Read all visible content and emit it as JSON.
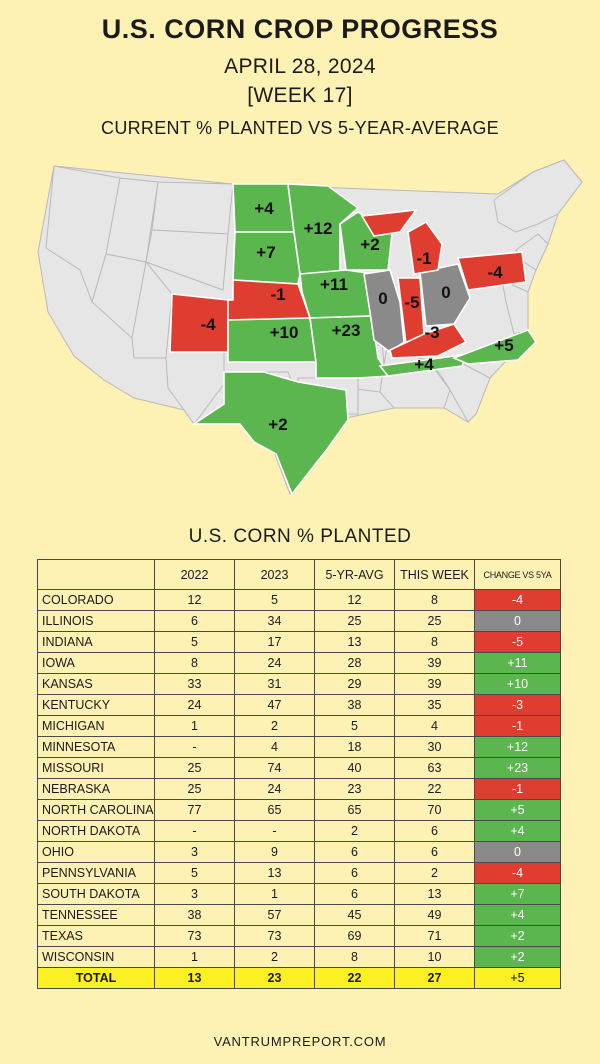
{
  "header": {
    "title": "U.S. CORN CROP PROGRESS",
    "date": "APRIL 28, 2024",
    "week": "[WEEK 17]",
    "comparison": "CURRENT % PLANTED VS 5-YEAR-AVERAGE"
  },
  "colors": {
    "background": "#fdf1b3",
    "positive": "#5cb64f",
    "negative": "#e03d31",
    "zero": "#8a8a8a",
    "total_row": "#fbf023",
    "map_base": "#e6e6e6"
  },
  "map": {
    "labels": [
      {
        "state": "North Dakota",
        "text": "+4"
      },
      {
        "state": "Minnesota",
        "text": "+12"
      },
      {
        "state": "South Dakota",
        "text": "+7"
      },
      {
        "state": "Wisconsin",
        "text": "+2"
      },
      {
        "state": "Iowa",
        "text": "+11"
      },
      {
        "state": "Nebraska",
        "text": "-1"
      },
      {
        "state": "Colorado",
        "text": "-4"
      },
      {
        "state": "Kansas",
        "text": "+10"
      },
      {
        "state": "Missouri",
        "text": "+23"
      },
      {
        "state": "Illinois",
        "text": "0"
      },
      {
        "state": "Indiana",
        "text": "-5"
      },
      {
        "state": "Ohio",
        "text": "0"
      },
      {
        "state": "Michigan",
        "text": "-1"
      },
      {
        "state": "Pennsylvania",
        "text": "-4"
      },
      {
        "state": "Kentucky",
        "text": "-3"
      },
      {
        "state": "Tennessee",
        "text": "+4"
      },
      {
        "state": "North Carolina",
        "text": "+5"
      },
      {
        "state": "Texas",
        "text": "+2"
      }
    ]
  },
  "chart_data": {
    "type": "table",
    "title": "U.S. CORN % PLANTED",
    "columns": [
      "",
      "2022",
      "2023",
      "5-YR-AVG",
      "THIS WEEK",
      "CHANGE VS 5YA"
    ],
    "rows": [
      {
        "state": "COLORADO",
        "y2022": "12",
        "y2023": "5",
        "avg": "12",
        "week": "8",
        "change": "-4"
      },
      {
        "state": "ILLINOIS",
        "y2022": "6",
        "y2023": "34",
        "avg": "25",
        "week": "25",
        "change": "0"
      },
      {
        "state": "INDIANA",
        "y2022": "5",
        "y2023": "17",
        "avg": "13",
        "week": "8",
        "change": "-5"
      },
      {
        "state": "IOWA",
        "y2022": "8",
        "y2023": "24",
        "avg": "28",
        "week": "39",
        "change": "+11"
      },
      {
        "state": "KANSAS",
        "y2022": "33",
        "y2023": "31",
        "avg": "29",
        "week": "39",
        "change": "+10"
      },
      {
        "state": "KENTUCKY",
        "y2022": "24",
        "y2023": "47",
        "avg": "38",
        "week": "35",
        "change": "-3"
      },
      {
        "state": "MICHIGAN",
        "y2022": "1",
        "y2023": "2",
        "avg": "5",
        "week": "4",
        "change": "-1"
      },
      {
        "state": "MINNESOTA",
        "y2022": "-",
        "y2023": "4",
        "avg": "18",
        "week": "30",
        "change": "+12"
      },
      {
        "state": "MISSOURI",
        "y2022": "25",
        "y2023": "74",
        "avg": "40",
        "week": "63",
        "change": "+23"
      },
      {
        "state": "NEBRASKA",
        "y2022": "25",
        "y2023": "24",
        "avg": "23",
        "week": "22",
        "change": "-1"
      },
      {
        "state": "NORTH CAROLINA",
        "y2022": "77",
        "y2023": "65",
        "avg": "65",
        "week": "70",
        "change": "+5"
      },
      {
        "state": "NORTH DAKOTA",
        "y2022": "-",
        "y2023": "-",
        "avg": "2",
        "week": "6",
        "change": "+4"
      },
      {
        "state": "OHIO",
        "y2022": "3",
        "y2023": "9",
        "avg": "6",
        "week": "6",
        "change": "0"
      },
      {
        "state": "PENNSYLVANIA",
        "y2022": "5",
        "y2023": "13",
        "avg": "6",
        "week": "2",
        "change": "-4"
      },
      {
        "state": "SOUTH DAKOTA",
        "y2022": "3",
        "y2023": "1",
        "avg": "6",
        "week": "13",
        "change": "+7"
      },
      {
        "state": "TENNESSEE",
        "y2022": "38",
        "y2023": "57",
        "avg": "45",
        "week": "49",
        "change": "+4"
      },
      {
        "state": "TEXAS",
        "y2022": "73",
        "y2023": "73",
        "avg": "69",
        "week": "71",
        "change": "+2"
      },
      {
        "state": "WISCONSIN",
        "y2022": "1",
        "y2023": "2",
        "avg": "8",
        "week": "10",
        "change": "+2"
      }
    ],
    "total": {
      "state": "TOTAL",
      "y2022": "13",
      "y2023": "23",
      "avg": "22",
      "week": "27",
      "change": "+5"
    }
  },
  "footer": {
    "site": "VANTRUMPREPORT.COM"
  }
}
